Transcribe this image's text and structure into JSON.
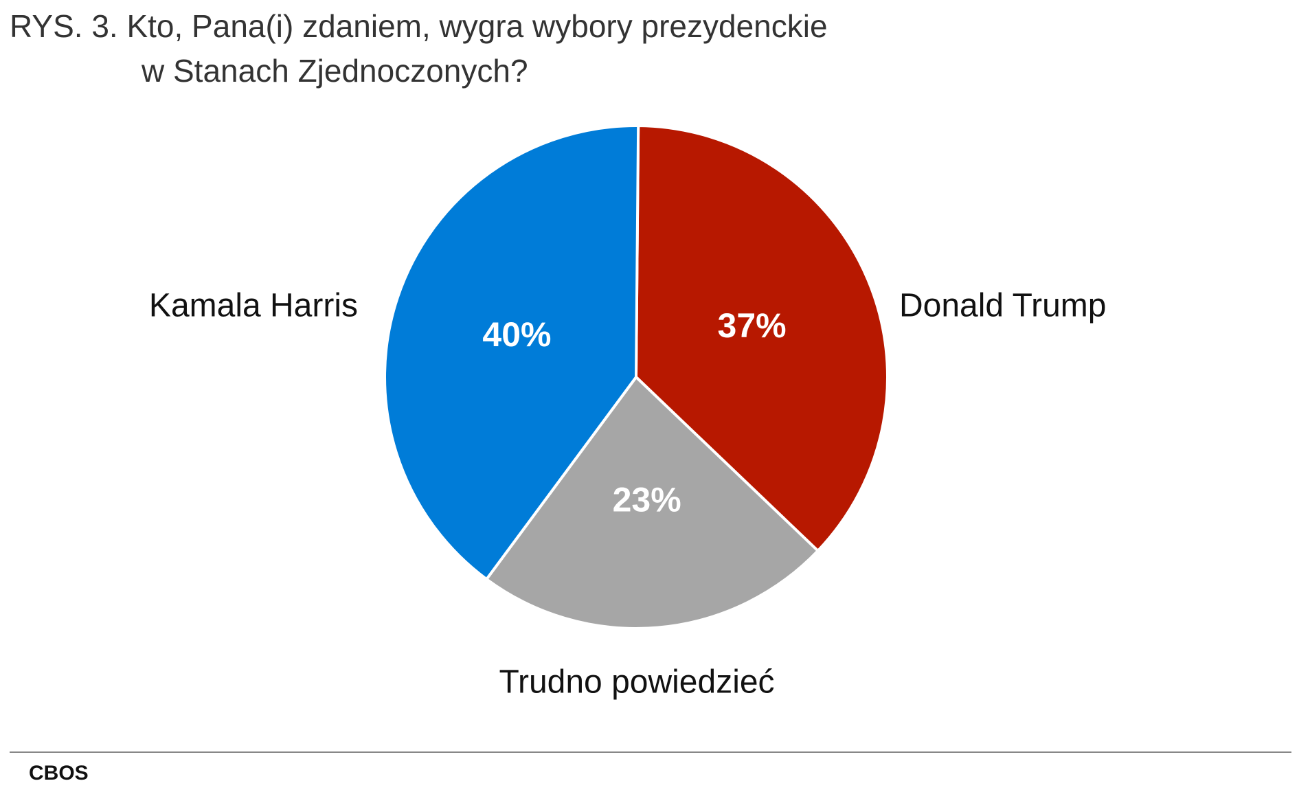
{
  "chart_data": {
    "type": "pie",
    "title": [
      "RYS. 3. Kto, Pana(i) zdaniem, wygra wybory prezydenckie",
      "w Stanach Zjednoczonych?"
    ],
    "categories": [
      "Donald Trump",
      "Trudno powiedzieć",
      "Kamala Harris"
    ],
    "values": [
      37,
      23,
      40
    ],
    "value_labels": [
      "37%",
      "23%",
      "40%"
    ],
    "colors": [
      "#b71800",
      "#a6a6a6",
      "#007cd8"
    ],
    "source": "CBOS"
  }
}
